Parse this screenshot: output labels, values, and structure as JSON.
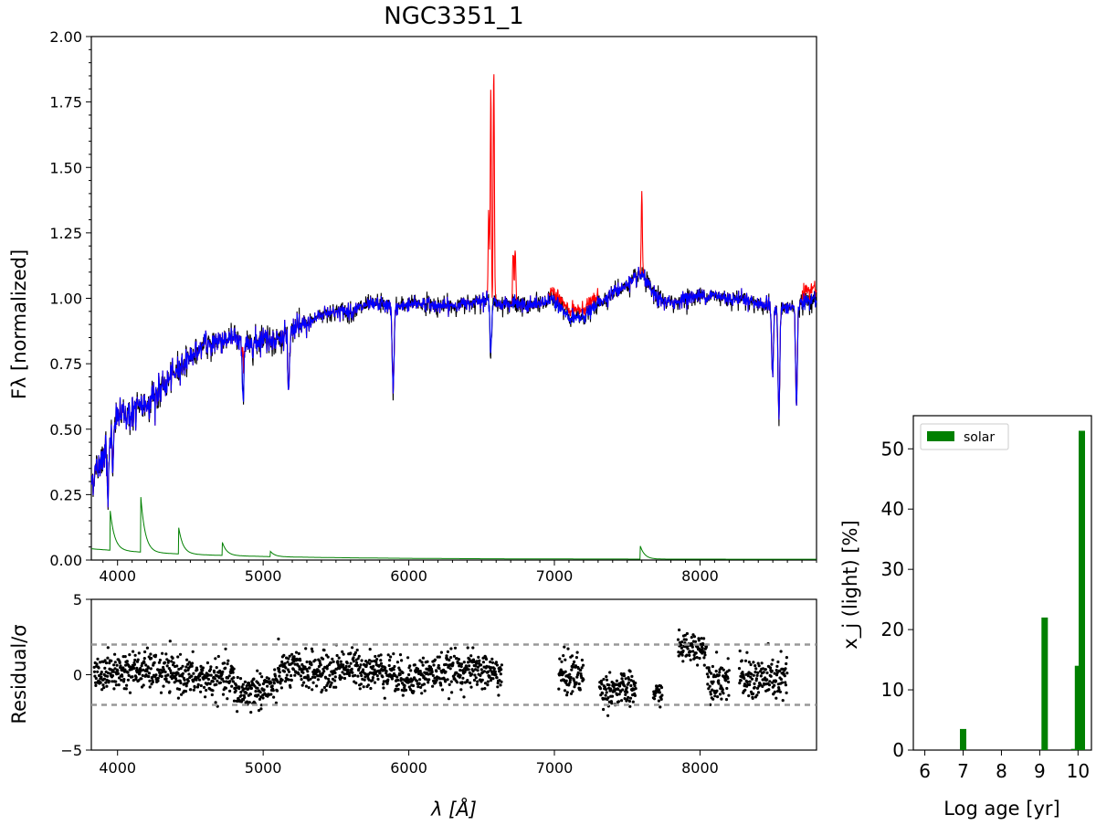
{
  "title": "NGC3351_1",
  "colors": {
    "observed": "#000000",
    "emission": "#ff0000",
    "model": "#0000ff",
    "component": "#008000",
    "residual_points": "#000000",
    "sigma_lines": "#999999"
  },
  "chart_data": [
    {
      "type": "line",
      "title": "NGC3351_1",
      "xlabel": "λ [Å]",
      "ylabel": "Fλ [normalized]",
      "xlim": [
        3820,
        8800
      ],
      "ylim": [
        0,
        2.0
      ],
      "xticks": [
        4000,
        5000,
        6000,
        7000,
        8000
      ],
      "yticks": [
        0.0,
        0.25,
        0.5,
        0.75,
        1.0,
        1.25,
        1.5,
        1.75,
        2.0
      ],
      "xtick_labels": [
        "4000",
        "5000",
        "6000",
        "7000",
        "8000"
      ],
      "ytick_labels": [
        "0.00",
        "0.25",
        "0.50",
        "0.75",
        "1.00",
        "1.25",
        "1.50",
        "1.75",
        "2.00"
      ],
      "series": [
        {
          "key": "observed",
          "color": "#000000",
          "values_description": "observed spectrum"
        },
        {
          "key": "emission",
          "color": "#ff0000",
          "peaks": [
            {
              "x": 4861,
              "y": 1.01
            },
            {
              "x": 6549,
              "y": 1.35
            },
            {
              "x": 6563,
              "y": 2.0
            },
            {
              "x": 6584,
              "y": 1.88
            },
            {
              "x": 6717,
              "y": 1.18
            },
            {
              "x": 6731,
              "y": 1.18
            },
            {
              "x": 7600,
              "y": 1.4
            }
          ]
        },
        {
          "key": "model",
          "color": "#0000ff"
        },
        {
          "key": "component",
          "color": "#008000",
          "peaks": [
            {
              "x": 3950,
              "y": 0.17
            },
            {
              "x": 4160,
              "y": 0.23
            },
            {
              "x": 4420,
              "y": 0.12
            },
            {
              "x": 4720,
              "y": 0.07
            },
            {
              "x": 5050,
              "y": 0.04
            },
            {
              "x": 7590,
              "y": 0.07
            }
          ]
        }
      ],
      "anchors": [
        [
          3820,
          0.3
        ],
        [
          3900,
          0.4
        ],
        [
          3950,
          0.5
        ],
        [
          4000,
          0.55
        ],
        [
          4100,
          0.56
        ],
        [
          4200,
          0.6
        ],
        [
          4300,
          0.65
        ],
        [
          4400,
          0.72
        ],
        [
          4500,
          0.78
        ],
        [
          4600,
          0.82
        ],
        [
          4700,
          0.84
        ],
        [
          4800,
          0.85
        ],
        [
          4900,
          0.82
        ],
        [
          5000,
          0.85
        ],
        [
          5100,
          0.84
        ],
        [
          5200,
          0.88
        ],
        [
          5300,
          0.9
        ],
        [
          5400,
          0.94
        ],
        [
          5500,
          0.95
        ],
        [
          5600,
          0.95
        ],
        [
          5700,
          0.97
        ],
        [
          5800,
          0.98
        ],
        [
          5900,
          0.96
        ],
        [
          6000,
          0.98
        ],
        [
          6100,
          0.98
        ],
        [
          6200,
          0.97
        ],
        [
          6300,
          0.97
        ],
        [
          6400,
          0.98
        ],
        [
          6500,
          1.0
        ],
        [
          6600,
          0.98
        ],
        [
          6700,
          0.98
        ],
        [
          6800,
          0.97
        ],
        [
          6900,
          0.98
        ],
        [
          7000,
          1.0
        ],
        [
          7100,
          0.92
        ],
        [
          7200,
          0.93
        ],
        [
          7300,
          0.98
        ],
        [
          7400,
          1.02
        ],
        [
          7500,
          1.05
        ],
        [
          7600,
          1.09
        ],
        [
          7700,
          1.0
        ],
        [
          7800,
          0.98
        ],
        [
          7900,
          1.0
        ],
        [
          8000,
          1.01
        ],
        [
          8100,
          1.01
        ],
        [
          8200,
          1.0
        ],
        [
          8300,
          1.0
        ],
        [
          8400,
          0.98
        ],
        [
          8500,
          0.97
        ],
        [
          8600,
          0.96
        ],
        [
          8700,
          0.98
        ],
        [
          8800,
          1.0
        ]
      ],
      "absorptions": [
        {
          "x": 3934,
          "depth": 0.22
        },
        {
          "x": 3968,
          "depth": 0.18
        },
        {
          "x": 4861,
          "depth": 0.2
        },
        {
          "x": 5175,
          "depth": 0.25
        },
        {
          "x": 5893,
          "depth": 0.32
        },
        {
          "x": 6563,
          "depth": 0.18
        },
        {
          "x": 8498,
          "depth": 0.28
        },
        {
          "x": 8542,
          "depth": 0.42
        },
        {
          "x": 8662,
          "depth": 0.38
        }
      ]
    },
    {
      "type": "scatter",
      "xlabel": "λ [Å]",
      "ylabel": "Residual/σ",
      "xlim": [
        3820,
        8800
      ],
      "ylim": [
        -5,
        5
      ],
      "xticks": [
        4000,
        5000,
        6000,
        7000,
        8000
      ],
      "yticks": [
        -5,
        0,
        5
      ],
      "xtick_labels": [
        "4000",
        "5000",
        "6000",
        "7000",
        "8000"
      ],
      "ytick_labels": [
        "−5",
        "0",
        "5"
      ],
      "hlines": [
        2,
        -2
      ],
      "segments": [
        {
          "x0": 3840,
          "x1": 6640,
          "center": 0.0,
          "spread": 1.1
        },
        {
          "x0": 7030,
          "x1": 7200,
          "center": 0.0,
          "spread": 1.3
        },
        {
          "x0": 7310,
          "x1": 7560,
          "center": -1.0,
          "spread": 1.0
        },
        {
          "x0": 7680,
          "x1": 7740,
          "center": -1.2,
          "spread": 0.6
        },
        {
          "x0": 7850,
          "x1": 8050,
          "center": 1.8,
          "spread": 0.9
        },
        {
          "x0": 8050,
          "x1": 8200,
          "center": -0.3,
          "spread": 1.2
        },
        {
          "x0": 8270,
          "x1": 8600,
          "center": -0.3,
          "spread": 1.3
        }
      ]
    },
    {
      "type": "bar",
      "xlabel": "Log age [yr]",
      "ylabel": "x_j (light) [%]",
      "xlim": [
        5.7,
        10.35
      ],
      "ylim": [
        0,
        55.5
      ],
      "xticks": [
        6,
        7,
        8,
        9,
        10
      ],
      "yticks": [
        0,
        10,
        20,
        30,
        40,
        50
      ],
      "xtick_labels": [
        "6",
        "7",
        "8",
        "9",
        "10"
      ],
      "ytick_labels": [
        "0",
        "10",
        "20",
        "30",
        "40",
        "50"
      ],
      "legend": {
        "label": "solar",
        "position": "top-left"
      },
      "series": [
        {
          "name": "solar",
          "x": [
            7.0,
            9.13,
            9.9,
            10.0,
            10.1
          ],
          "values": [
            3.5,
            22.0,
            0.2,
            14.0,
            53.0
          ]
        }
      ]
    }
  ]
}
